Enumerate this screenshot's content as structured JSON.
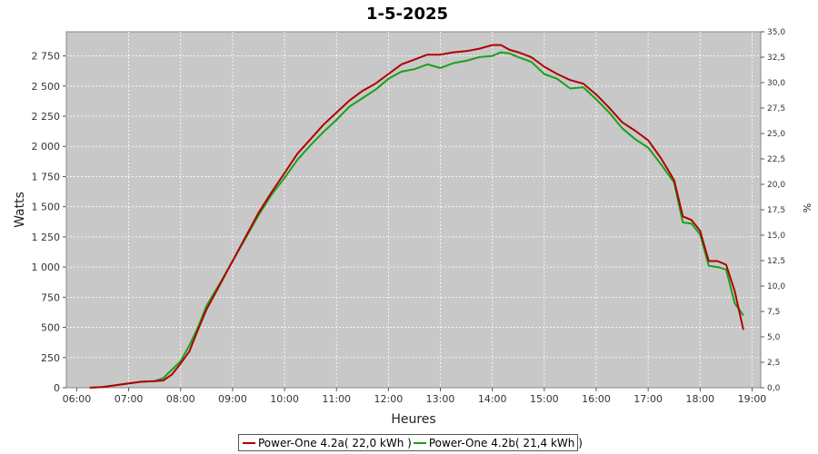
{
  "chart_data": {
    "type": "line",
    "title": "1-5-2025",
    "xlabel": "Heures",
    "ylabel": "Watts",
    "y2label": "%",
    "xlim": [
      "06:00",
      "19:00"
    ],
    "ylim": [
      0,
      2950
    ],
    "y2lim": [
      0,
      35
    ],
    "x_ticks": [
      "06:00",
      "07:00",
      "08:00",
      "09:00",
      "10:00",
      "11:00",
      "12:00",
      "13:00",
      "14:00",
      "15:00",
      "16:00",
      "17:00",
      "18:00",
      "19:00"
    ],
    "y_ticks": [
      "0",
      "250",
      "500",
      "750",
      "1 000",
      "1 250",
      "1 500",
      "1 750",
      "2 000",
      "2 250",
      "2 500",
      "2 750"
    ],
    "y2_ticks": [
      "0,0",
      "2,5",
      "5,0",
      "7,5",
      "10,0",
      "12,5",
      "15,0",
      "17,5",
      "20,0",
      "22,5",
      "25,0",
      "27,5",
      "30,0",
      "32,5",
      "35,0"
    ],
    "grid": true,
    "legend": "bottom",
    "series": [
      {
        "name": "Power-One 4.2a( 22,0 kWh )",
        "color": "#b00000",
        "x": [
          "06:15",
          "06:30",
          "06:45",
          "07:00",
          "07:15",
          "07:30",
          "07:40",
          "07:50",
          "08:00",
          "08:10",
          "08:20",
          "08:30",
          "08:45",
          "09:00",
          "09:15",
          "09:30",
          "09:45",
          "10:00",
          "10:15",
          "10:30",
          "10:45",
          "11:00",
          "11:15",
          "11:30",
          "11:45",
          "12:00",
          "12:15",
          "12:30",
          "12:45",
          "13:00",
          "13:15",
          "13:30",
          "13:45",
          "14:00",
          "14:10",
          "14:20",
          "14:30",
          "14:45",
          "15:00",
          "15:15",
          "15:30",
          "15:45",
          "16:00",
          "16:15",
          "16:30",
          "16:45",
          "17:00",
          "17:15",
          "17:30",
          "17:40",
          "17:50",
          "18:00",
          "18:10",
          "18:20",
          "18:30",
          "18:40",
          "18:50"
        ],
        "values": [
          0,
          5,
          20,
          35,
          50,
          55,
          60,
          110,
          200,
          300,
          480,
          650,
          850,
          1050,
          1250,
          1450,
          1620,
          1780,
          1940,
          2060,
          2180,
          2280,
          2380,
          2460,
          2520,
          2600,
          2680,
          2720,
          2760,
          2760,
          2780,
          2790,
          2810,
          2840,
          2840,
          2800,
          2780,
          2740,
          2660,
          2600,
          2550,
          2520,
          2430,
          2320,
          2200,
          2130,
          2050,
          1900,
          1720,
          1420,
          1390,
          1300,
          1050,
          1050,
          1020,
          800,
          480
        ]
      },
      {
        "name": "Power-One 4.2b( 21,4 kWh )",
        "color": "#1aa01a",
        "x": [
          "06:15",
          "06:30",
          "06:45",
          "07:00",
          "07:15",
          "07:30",
          "07:40",
          "07:50",
          "08:00",
          "08:10",
          "08:20",
          "08:30",
          "08:45",
          "09:00",
          "09:15",
          "09:30",
          "09:45",
          "10:00",
          "10:15",
          "10:30",
          "10:45",
          "11:00",
          "11:15",
          "11:30",
          "11:45",
          "12:00",
          "12:15",
          "12:30",
          "12:45",
          "13:00",
          "13:15",
          "13:30",
          "13:45",
          "14:00",
          "14:10",
          "14:20",
          "14:30",
          "14:45",
          "15:00",
          "15:15",
          "15:30",
          "15:45",
          "16:00",
          "16:15",
          "16:30",
          "16:45",
          "17:00",
          "17:15",
          "17:30",
          "17:40",
          "17:50",
          "18:00",
          "18:10",
          "18:20",
          "18:30",
          "18:40",
          "18:50"
        ],
        "values": [
          0,
          5,
          20,
          35,
          50,
          55,
          80,
          150,
          220,
          350,
          500,
          680,
          860,
          1050,
          1240,
          1430,
          1600,
          1740,
          1890,
          2010,
          2120,
          2220,
          2330,
          2400,
          2470,
          2560,
          2620,
          2640,
          2680,
          2650,
          2690,
          2710,
          2740,
          2750,
          2780,
          2770,
          2740,
          2700,
          2600,
          2560,
          2480,
          2490,
          2390,
          2280,
          2150,
          2060,
          1990,
          1850,
          1700,
          1370,
          1360,
          1270,
          1010,
          1000,
          980,
          700,
          600
        ]
      }
    ]
  }
}
